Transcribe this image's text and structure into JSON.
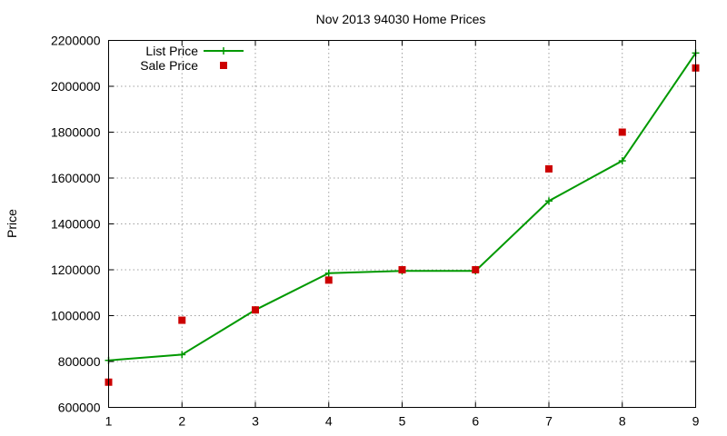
{
  "chart_data": {
    "type": "line",
    "title": "Nov 2013 94030 Home Prices",
    "xlabel": "",
    "ylabel": "Price",
    "x": [
      1,
      2,
      3,
      4,
      5,
      6,
      7,
      8,
      9
    ],
    "xlim": [
      1,
      9
    ],
    "ylim": [
      600000,
      2200000
    ],
    "xticks": [
      1,
      2,
      3,
      4,
      5,
      6,
      7,
      8,
      9
    ],
    "yticks": [
      600000,
      800000,
      1000000,
      1200000,
      1400000,
      1600000,
      1800000,
      2000000,
      2200000
    ],
    "grid": true,
    "legend_position": "top-left",
    "series": [
      {
        "name": "List Price",
        "style": "line+cross",
        "color": "#009900",
        "values": [
          805000,
          830000,
          1025000,
          1185000,
          1195000,
          1195000,
          1500000,
          1675000,
          2145000
        ]
      },
      {
        "name": "Sale Price",
        "style": "square",
        "color": "#cc0000",
        "values": [
          710000,
          980000,
          1025000,
          1155000,
          1200000,
          1200000,
          1640000,
          1800000,
          2080000
        ]
      }
    ]
  }
}
